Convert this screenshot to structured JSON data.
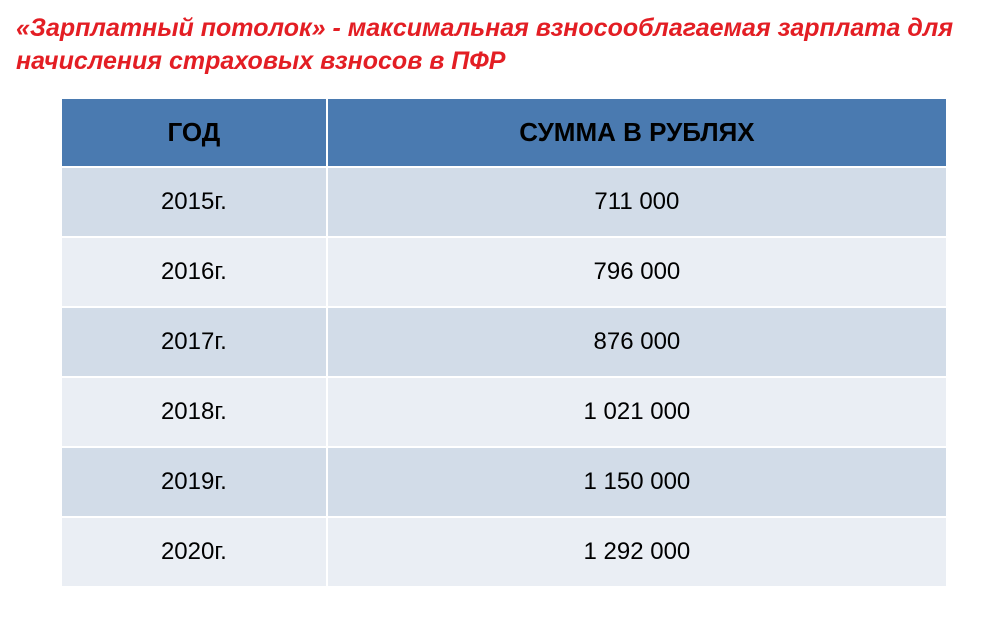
{
  "title": "«Зарплатный потолок» - максимальная взносооблагаемая зарплата для начисления страховых взносов в ПФР",
  "table": {
    "type": "table",
    "header_bg_color": "#4a7ab0",
    "row_odd_bg_color": "#d2dce8",
    "row_even_bg_color": "#eaeef4",
    "border_color": "#ffffff",
    "header_font_size": 26,
    "cell_font_size": 24,
    "title_color": "#e31e24",
    "title_font_size": 25,
    "columns": [
      {
        "label": "ГОД",
        "width": "30%"
      },
      {
        "label": "СУММА В РУБЛЯХ",
        "width": "70%"
      }
    ],
    "rows": [
      {
        "year": "2015г.",
        "amount": "711 000"
      },
      {
        "year": "2016г.",
        "amount": "796 000"
      },
      {
        "year": "2017г.",
        "amount": "876 000"
      },
      {
        "year": "2018г.",
        "amount": "1 021 000"
      },
      {
        "year": "2019г.",
        "amount": "1 150 000"
      },
      {
        "year": "2020г.",
        "amount": "1 292 000"
      }
    ]
  }
}
